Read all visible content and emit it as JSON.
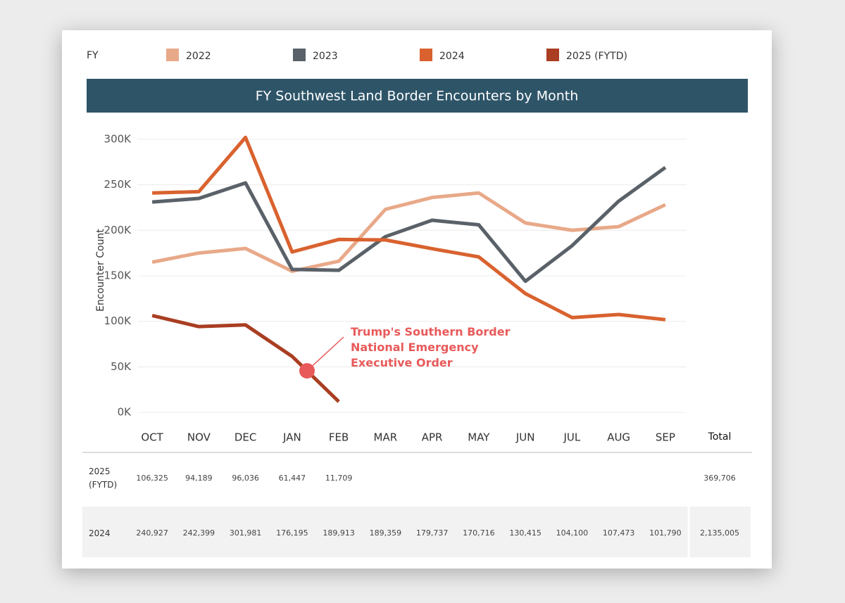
{
  "legend_title": "FY",
  "chart_data": {
    "type": "line",
    "title": "FY Southwest Land Border Encounters by Month",
    "y_label": "Encounter Count",
    "categories": [
      "OCT",
      "NOV",
      "DEC",
      "JAN",
      "FEB",
      "MAR",
      "APR",
      "MAY",
      "JUN",
      "JUL",
      "AUG",
      "SEP"
    ],
    "series": [
      {
        "name": "2022",
        "color": "#e8a989",
        "values": [
          165000,
          175000,
          180000,
          155000,
          166000,
          223000,
          236000,
          241000,
          208000,
          200000,
          204000,
          228000
        ]
      },
      {
        "name": "2023",
        "color": "#5a6168",
        "values": [
          231000,
          235000,
          252000,
          157000,
          156000,
          193000,
          211000,
          206000,
          144000,
          183000,
          232000,
          269000
        ]
      },
      {
        "name": "2024",
        "color": "#d9622f",
        "values": [
          240927,
          242399,
          301981,
          176195,
          189913,
          189359,
          179737,
          170716,
          130415,
          104100,
          107473,
          101790
        ],
        "value_labels": [
          "240,927",
          "242,399",
          "301,981",
          "176,195",
          "189,913",
          "189,359",
          "179,737",
          "170,716",
          "130,415",
          "104,100",
          "107,473",
          "101,790"
        ]
      },
      {
        "name": "2025 (FYTD)",
        "color": "#a93e22",
        "values": [
          106325,
          94189,
          96036,
          61447,
          11709,
          null,
          null,
          null,
          null,
          null,
          null,
          null
        ],
        "value_labels": [
          "106,325",
          "94,189",
          "96,036",
          "61,447",
          "11,709",
          null,
          null,
          null,
          null,
          null,
          null,
          null
        ]
      }
    ],
    "ylim": [
      0,
      320000
    ],
    "yticks": [
      {
        "value": 0,
        "label": "0K"
      },
      {
        "value": 50000,
        "label": "50K"
      },
      {
        "value": 100000,
        "label": "100K"
      },
      {
        "value": 150000,
        "label": "150K"
      },
      {
        "value": 200000,
        "label": "200K"
      },
      {
        "value": 250000,
        "label": "250K"
      },
      {
        "value": 300000,
        "label": "300K"
      }
    ],
    "grid": true,
    "annotation": "Trump's Southern Border National Emergency Executive Order",
    "annotation_color": "#e85a5a"
  },
  "table": {
    "total_header": "Total",
    "rows": [
      {
        "series": 3,
        "total": "369,706"
      },
      {
        "series": 2,
        "total": "2,135,005"
      }
    ]
  }
}
